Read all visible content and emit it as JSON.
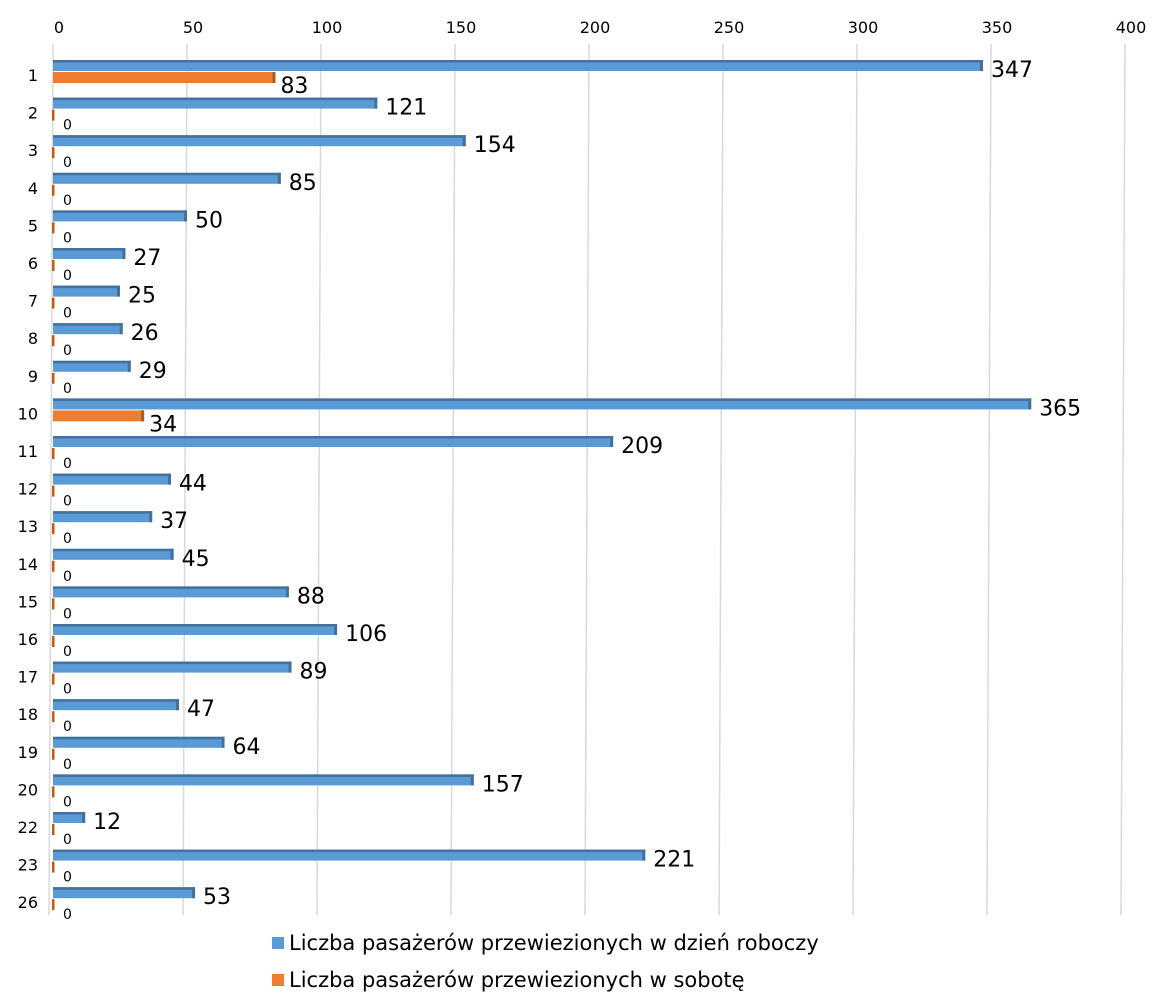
{
  "chart_data": {
    "type": "bar",
    "orientation": "horizontal",
    "categories": [
      "1",
      "2",
      "3",
      "4",
      "5",
      "6",
      "7",
      "8",
      "9",
      "10",
      "11",
      "12",
      "13",
      "14",
      "15",
      "16",
      "17",
      "18",
      "19",
      "20",
      "22",
      "23",
      "26"
    ],
    "series": [
      {
        "name": "Liczba pasażerów przewiezionych w dzień roboczy",
        "color": "#5B9BD5",
        "values": [
          347,
          121,
          154,
          85,
          50,
          27,
          25,
          26,
          29,
          365,
          209,
          44,
          37,
          45,
          88,
          106,
          89,
          47,
          64,
          157,
          12,
          221,
          53
        ]
      },
      {
        "name": "Liczba pasażerów przewiezionych w sobotę",
        "color": "#ED7D31",
        "values": [
          83,
          0,
          0,
          0,
          0,
          0,
          0,
          0,
          0,
          34,
          0,
          0,
          0,
          0,
          0,
          0,
          0,
          0,
          0,
          0,
          0,
          0,
          0
        ]
      }
    ],
    "xlim": [
      0,
      400
    ],
    "xticks": [
      0,
      50,
      100,
      150,
      200,
      250,
      300,
      350,
      400
    ],
    "x_axis_position": "top",
    "grid": true,
    "legend": "bottom",
    "data_labels": true
  }
}
